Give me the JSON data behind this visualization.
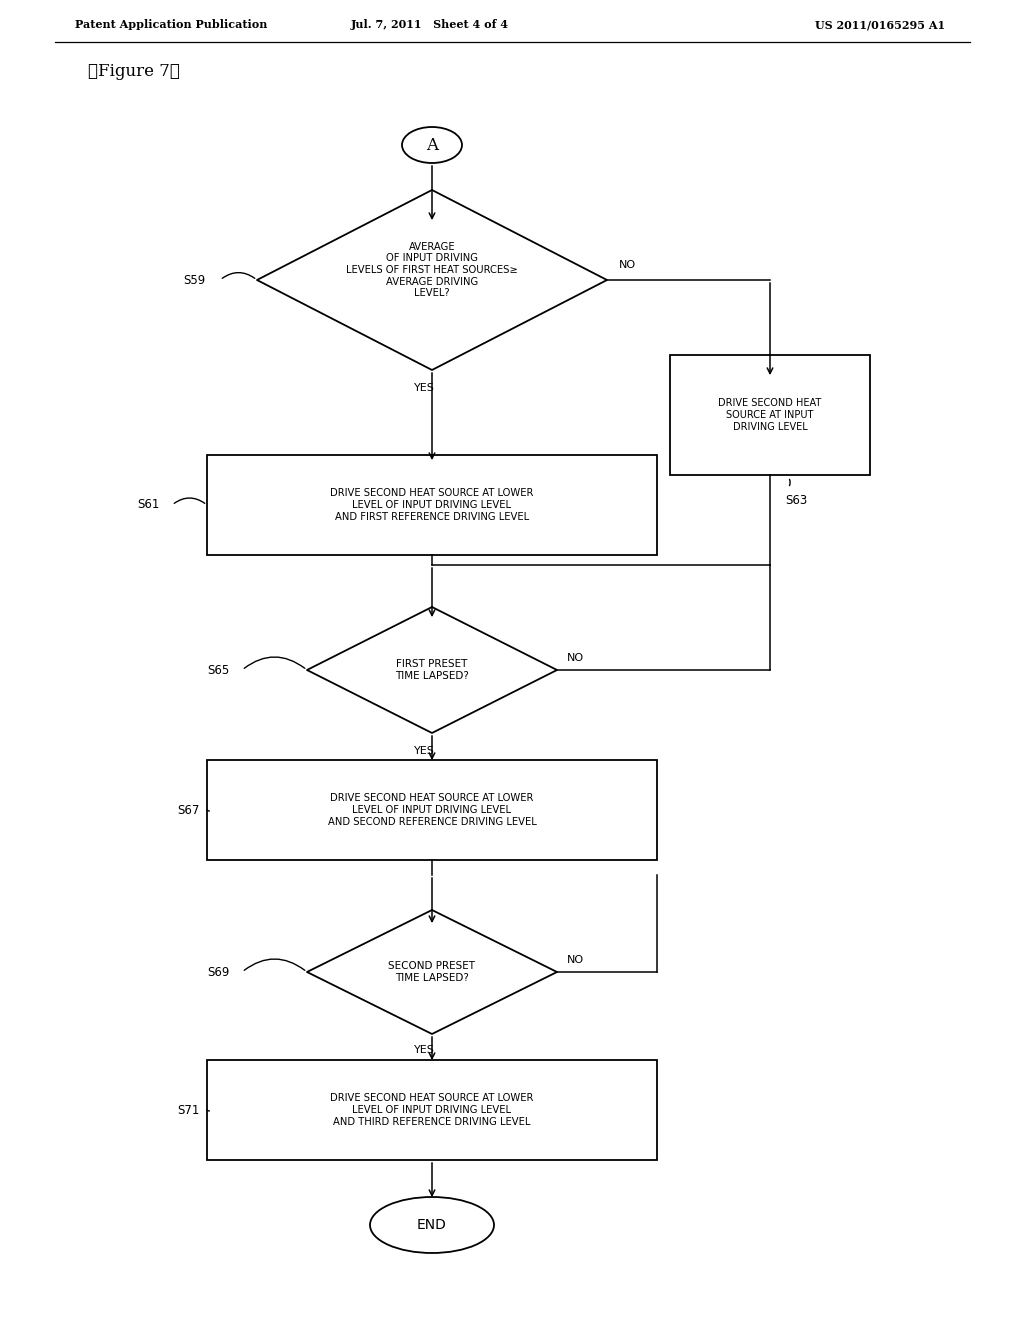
{
  "title": "《Figure 7》",
  "header_left": "Patent Application Publication",
  "header_mid": "Jul. 7, 2011   Sheet 4 of 4",
  "header_right": "US 2011/0165295 A1",
  "bg_color": "#ffffff",
  "line_color": "#000000",
  "figsize": [
    10.24,
    13.2
  ],
  "dpi": 100
}
